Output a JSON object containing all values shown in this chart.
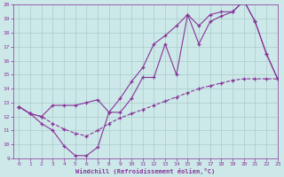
{
  "xlabel": "Windchill (Refroidissement éolien,°C)",
  "xlim": [
    -0.5,
    23
  ],
  "ylim": [
    9,
    20
  ],
  "xticks": [
    0,
    1,
    2,
    3,
    4,
    5,
    6,
    7,
    8,
    9,
    10,
    11,
    12,
    13,
    14,
    15,
    16,
    17,
    18,
    19,
    20,
    21,
    22,
    23
  ],
  "yticks": [
    9,
    10,
    11,
    12,
    13,
    14,
    15,
    16,
    17,
    18,
    19,
    20
  ],
  "background_color": "#cce8e8",
  "grid_color": "#aacccc",
  "line_color": "#883399",
  "curve1_x": [
    0,
    1,
    2,
    3,
    4,
    5,
    6,
    7,
    8,
    9,
    10,
    11,
    12,
    13,
    14,
    15,
    16,
    17,
    18,
    19,
    20,
    21,
    22,
    23
  ],
  "curve1_y": [
    12.7,
    12.2,
    11.5,
    11.0,
    9.9,
    9.2,
    9.2,
    9.8,
    12.3,
    12.3,
    13.3,
    14.8,
    14.8,
    17.2,
    15.0,
    19.3,
    17.2,
    18.8,
    19.2,
    19.5,
    20.3,
    18.8,
    16.5,
    14.7
  ],
  "curve2_x": [
    0,
    1,
    2,
    3,
    4,
    5,
    6,
    7,
    8,
    9,
    10,
    11,
    12,
    13,
    14,
    15,
    16,
    17,
    18,
    19,
    20,
    21,
    22,
    23
  ],
  "curve2_y": [
    12.7,
    12.2,
    12.0,
    11.5,
    11.1,
    10.8,
    10.6,
    11.0,
    11.5,
    11.9,
    12.2,
    12.5,
    12.8,
    13.1,
    13.4,
    13.7,
    14.0,
    14.2,
    14.4,
    14.6,
    14.7,
    14.7,
    14.7,
    14.7
  ],
  "curve3_x": [
    0,
    1,
    2,
    3,
    4,
    5,
    6,
    7,
    8,
    9,
    10,
    11,
    12,
    13,
    14,
    15,
    16,
    17,
    18,
    19,
    20,
    21,
    22,
    23
  ],
  "curve3_y": [
    12.7,
    12.2,
    12.0,
    12.8,
    12.8,
    12.8,
    13.0,
    13.2,
    12.3,
    13.3,
    14.5,
    15.5,
    17.2,
    17.8,
    18.5,
    19.3,
    18.5,
    19.3,
    19.5,
    19.5,
    20.3,
    18.8,
    16.5,
    14.7
  ]
}
